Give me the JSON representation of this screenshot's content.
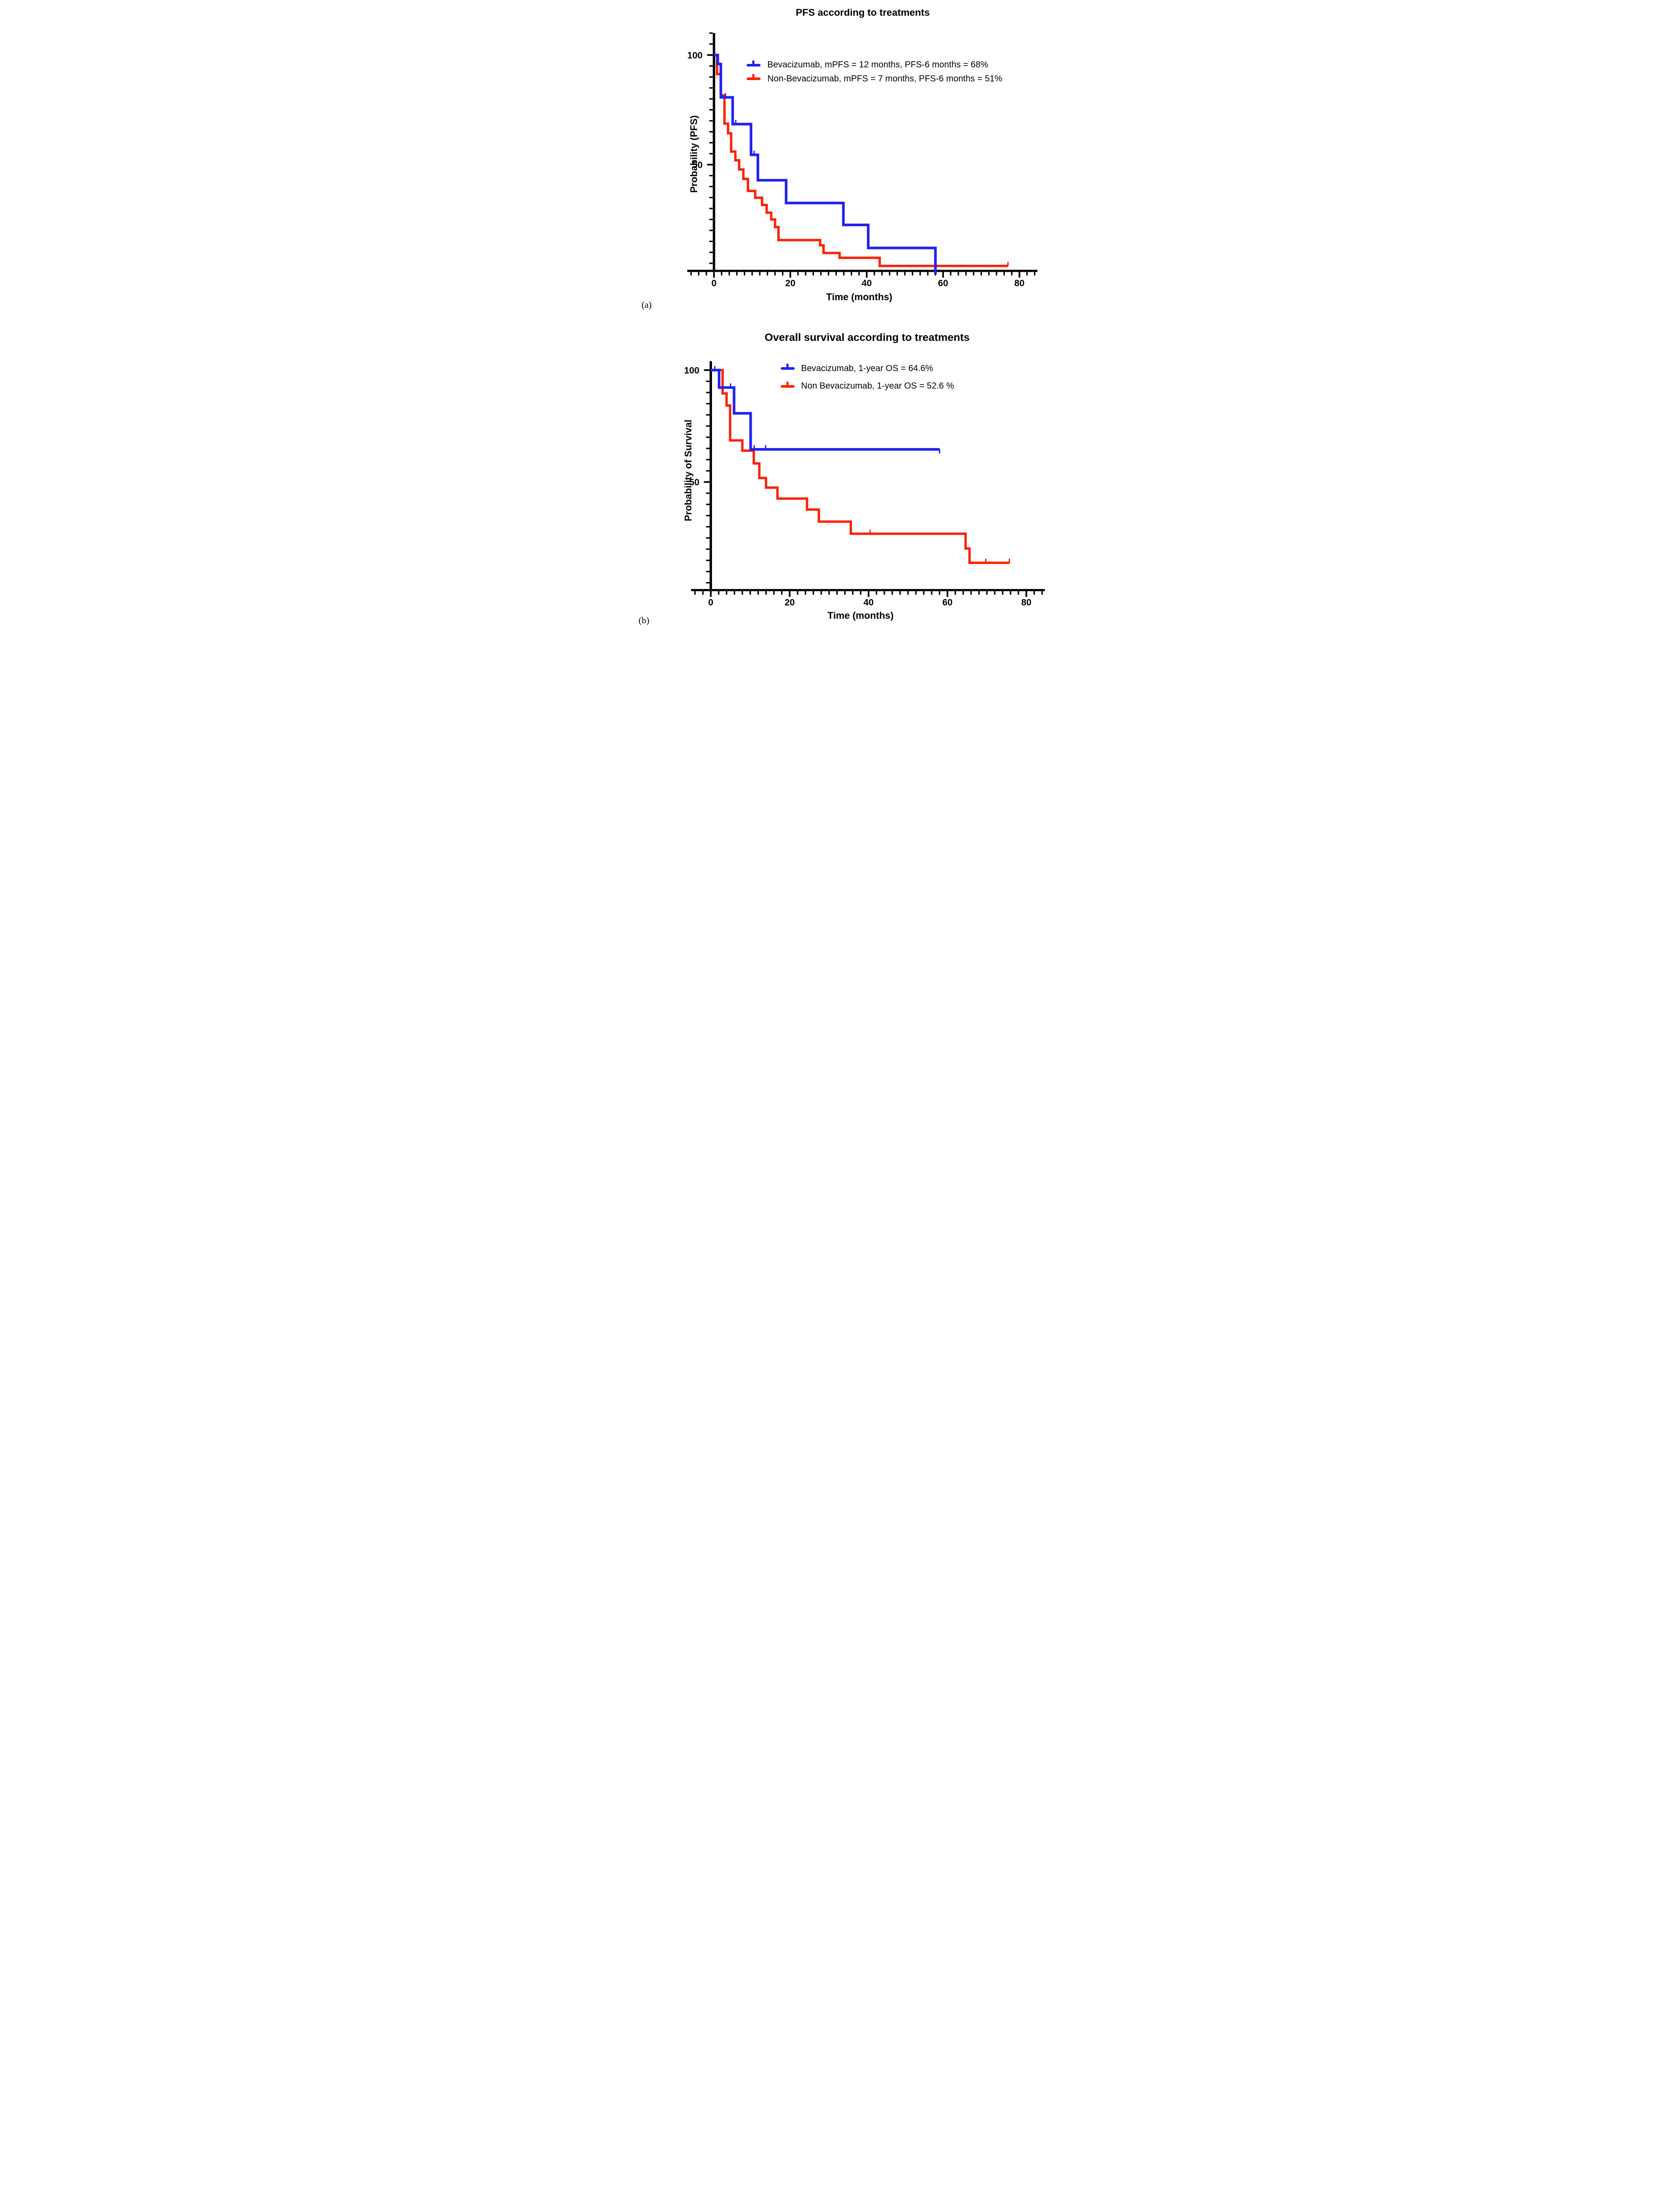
{
  "figure_type": "kaplan-meier-survival-figure",
  "chart_data": [
    {
      "type": "line",
      "subtype": "kaplan-meier-step",
      "panel_letter": "(a)",
      "title": "PFS according to treatments",
      "xlabel": "Time (months)",
      "ylabel": "Probability (PFS)",
      "x_ticks": [
        0,
        20,
        40,
        60,
        80
      ],
      "y_ticks": [
        100,
        50
      ],
      "xlim": [
        -7,
        84.7
      ],
      "ylim": [
        0,
        110
      ],
      "x_minor_step": 2,
      "y_minor_step": 5,
      "grid": false,
      "legend_position": "upper-middle",
      "series": [
        {
          "id": "bevacizumab",
          "legend": "Bevacizumab, mPFS = 12 months, PFS-6 months = 68%",
          "color": "#2222f0",
          "start_prob": 100,
          "steps": [
            [
              1,
              95.9
            ],
            [
              1.8,
              80.7
            ],
            [
              4.9,
              68.5
            ],
            [
              9.7,
              54.5
            ],
            [
              11.5,
              42.9
            ],
            [
              18.9,
              32.5
            ],
            [
              33.9,
              22.5
            ],
            [
              40.4,
              12
            ],
            [
              58,
              0
            ]
          ],
          "end_month": 58,
          "censors": [
            [
              3,
              80.7
            ],
            [
              5.7,
              68.5
            ],
            [
              10.5,
              54.5
            ]
          ],
          "end_censor": null
        },
        {
          "id": "non-bevacizumab",
          "legend": "Non-Bevacizumab, mPFS = 7 months, PFS-6 months = 51%",
          "color": "#fa2408",
          "start_prob": 100,
          "steps": [
            [
              0.8,
              91.3
            ],
            [
              1.8,
              81.6
            ],
            [
              2.75,
              68.7
            ],
            [
              3.7,
              64.3
            ],
            [
              4.5,
              56
            ],
            [
              5.6,
              52
            ],
            [
              6.6,
              47.8
            ],
            [
              7.7,
              43.5
            ],
            [
              8.9,
              38
            ],
            [
              10.8,
              34.9
            ],
            [
              12.6,
              31.6
            ],
            [
              13.8,
              28.1
            ],
            [
              15,
              25
            ],
            [
              16,
              21.5
            ],
            [
              16.9,
              15.6
            ],
            [
              27.8,
              13.2
            ],
            [
              28.7,
              9.7
            ],
            [
              32.9,
              7.5
            ],
            [
              43.4,
              3.8
            ]
          ],
          "end_month": 77,
          "censors": [
            [
              77,
              3.8
            ]
          ],
          "end_censor": "up"
        }
      ]
    },
    {
      "type": "line",
      "subtype": "kaplan-meier-step",
      "panel_letter": "(b)",
      "title": "Overall survival according to treatments",
      "xlabel": "Time (months)",
      "ylabel": "Probability of Survival",
      "x_ticks": [
        0,
        20,
        40,
        60,
        80
      ],
      "y_ticks": [
        100,
        50
      ],
      "xlim": [
        -5,
        84.7
      ],
      "ylim": [
        0,
        104
      ],
      "x_minor_step": 2,
      "y_minor_step": 5,
      "grid": false,
      "legend_position": "upper-middle",
      "series": [
        {
          "id": "bevacizumab-os",
          "legend": "Bevacizumab, 1-year OS = 64.6%",
          "color": "#2222f0",
          "start_prob": 100,
          "steps": [
            [
              2.1,
              92.2
            ],
            [
              5.9,
              80.7
            ],
            [
              10.1,
              64.6
            ]
          ],
          "end_month": 58,
          "censors": [
            [
              1,
              100
            ],
            [
              5,
              92.2
            ],
            [
              11,
              64.6
            ],
            [
              13.9,
              64.6
            ]
          ],
          "end_censor": "down"
        },
        {
          "id": "non-bevacizumab-os",
          "legend": "Non Bevacizumab, 1-year OS = 52.6 %",
          "color": "#fa2408",
          "start_prob": 100,
          "steps": [
            [
              3,
              89.6
            ],
            [
              4,
              84.2
            ],
            [
              4.9,
              68.6
            ],
            [
              8,
              64
            ],
            [
              10.9,
              58.3
            ],
            [
              12.3,
              51.8
            ],
            [
              14,
              47.5
            ],
            [
              16.9,
              42.6
            ],
            [
              24.4,
              37.7
            ],
            [
              27.4,
              32.3
            ],
            [
              35.5,
              26.9
            ],
            [
              64.6,
              20.3
            ],
            [
              65.6,
              13.9
            ]
          ],
          "end_month": 75.7,
          "censors": [
            [
              40.4,
              26.9
            ],
            [
              69.7,
              13.9
            ],
            [
              75.7,
              13.9
            ]
          ],
          "end_censor": "up"
        }
      ]
    }
  ],
  "axis_color": "#000000",
  "background_color": "#ffffff"
}
